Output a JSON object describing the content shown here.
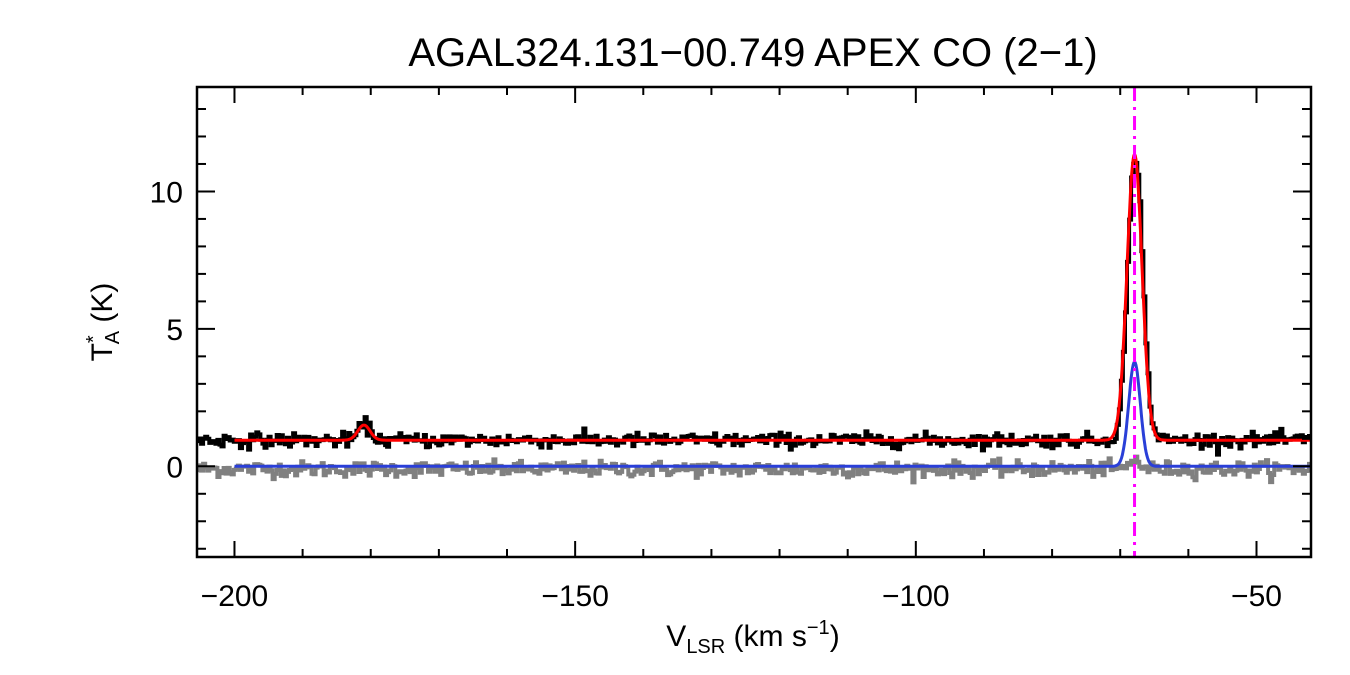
{
  "chart_data": {
    "type": "line",
    "title": "AGAL324.131−00.749  APEX CO (2−1)",
    "xlabel": {
      "base": "V",
      "sub": "LSR",
      "mid": " (km s",
      "sup": "−1",
      "end": ")"
    },
    "ylabel": {
      "base": "T",
      "sup": "*",
      "sub": "A",
      "end": " (K)"
    },
    "xlim": [
      -205.5,
      -42
    ],
    "ylim": [
      -3.3,
      13.8
    ],
    "xticks": [
      -200,
      -150,
      -100,
      -50
    ],
    "xtick_labels": [
      "−200",
      "−150",
      "−100",
      "−50"
    ],
    "x_minor_step": 10,
    "yticks": [
      0,
      5,
      10
    ],
    "ytick_labels": [
      "0",
      "5",
      "10"
    ],
    "y_minor_step": 1,
    "vline": {
      "x": -67.9,
      "color": "#ff00ff",
      "style": "dash-dot"
    },
    "series": [
      {
        "role": "observed spectrum (offset +1 K)",
        "kind": "noisy-step",
        "color": "#000000",
        "baseline": 0.95,
        "noise": 0.13,
        "x_start": -205.5,
        "components": [
          {
            "center": -181,
            "amp": 0.55,
            "sigma": 0.9
          },
          {
            "center": -67.9,
            "amp": 10.4,
            "sigma": 1.1
          }
        ]
      },
      {
        "role": "residual spectrum",
        "kind": "noisy-step",
        "color": "#808080",
        "baseline": -0.1,
        "noise": 0.14,
        "x_start": -205.5,
        "components": [
          {
            "center": -67.9,
            "amp": 0.35,
            "sigma": 0.7
          }
        ]
      },
      {
        "role": "gaussian fit",
        "kind": "model",
        "color": "#ff0000",
        "baseline": 0.95,
        "x_start": -200,
        "components": [
          {
            "center": -181,
            "amp": 0.55,
            "sigma": 0.9
          },
          {
            "center": -67.9,
            "amp": 10.4,
            "sigma": 1.1
          }
        ]
      },
      {
        "role": "gaussian component",
        "kind": "model",
        "color": "#2a3fd8",
        "baseline": 0,
        "x_start": -200,
        "components": [
          {
            "center": -67.9,
            "amp": 3.8,
            "sigma": 0.85
          }
        ]
      }
    ]
  }
}
